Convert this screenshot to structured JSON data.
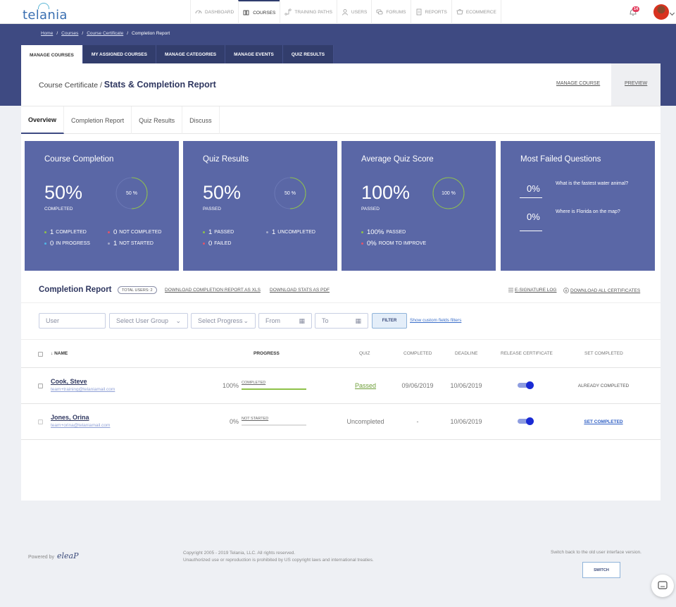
{
  "brand": {
    "logo_text": "telania"
  },
  "nav": {
    "items": [
      {
        "label": "DASHBOARD",
        "icon": "speedometer-icon"
      },
      {
        "label": "COURSES",
        "icon": "courses-icon",
        "active": true
      },
      {
        "label": "TRAINING PATHS",
        "icon": "path-icon"
      },
      {
        "label": "USERS",
        "icon": "user-icon"
      },
      {
        "label": "FORUMS",
        "icon": "chat-icon"
      },
      {
        "label": "REPORTS",
        "icon": "report-icon"
      },
      {
        "label": "ECOMMERCE",
        "icon": "cart-icon"
      }
    ],
    "notification_count": "14"
  },
  "breadcrumb": [
    "Home",
    "Courses",
    "Course Certificate",
    "Completion Report"
  ],
  "top_tabs": [
    "MANAGE COURSES",
    "MY ASSIGNED COURSES",
    "MANAGE CATEGORIES",
    "MANAGE EVENTS",
    "QUIZ RESULTS"
  ],
  "header": {
    "prefix": "Course Certificate /",
    "title": "Stats & Completion Report",
    "manage_course": "MANAGE COURSE",
    "preview": "PREVIEW"
  },
  "sub_tabs": [
    "Overview",
    "Completion Report",
    "Quiz Results",
    "Discuss"
  ],
  "cards": {
    "completion": {
      "title": "Course Completion",
      "big": "50%",
      "sub": "COMPLETED",
      "ring_text": "50 %",
      "ring_fraction": 0.5,
      "legend": [
        {
          "num": "1",
          "label": "COMPLETED",
          "color": "#8fc24a"
        },
        {
          "num": "0",
          "label": "NOT COMPLETED",
          "color": "#e2546b"
        },
        {
          "num": "0",
          "label": "IN PROGRESS",
          "color": "#4fb4e6"
        },
        {
          "num": "1",
          "label": "NOT STARTED",
          "color": "#a3a9c9"
        }
      ]
    },
    "quiz": {
      "title": "Quiz Results",
      "big": "50%",
      "sub": "PASSED",
      "ring_text": "50 %",
      "ring_fraction": 0.5,
      "legend": [
        {
          "num": "1",
          "label": "PASSED",
          "color": "#8fc24a"
        },
        {
          "num": "1",
          "label": "UNCOMPLETED",
          "color": "#a3a9c9"
        },
        {
          "num": "0",
          "label": "FAILED",
          "color": "#e2546b"
        }
      ]
    },
    "average": {
      "title": "Average Quiz Score",
      "big": "100%",
      "sub": "PASSED",
      "ring_text": "100 %",
      "ring_fraction": 1.0,
      "legend": [
        {
          "num": "100%",
          "label": "PASSED",
          "color": "#8fc24a"
        },
        {
          "num": "0%",
          "label": "ROOM TO IMPROVE",
          "color": "#e2546b"
        }
      ]
    },
    "failed": {
      "title": "Most Failed Questions",
      "questions": [
        {
          "pct": "0%",
          "text": "What is the fastest water animal?"
        },
        {
          "pct": "0%",
          "text": "Where is Florida on the map?"
        }
      ]
    }
  },
  "report": {
    "title": "Completion Report",
    "total_users": "TOTAL USERS: 2",
    "download_xls": "DOWNLOAD COMPLETION REPORT AS XLS",
    "download_pdf": "DOWNLOAD STATS AS PDF",
    "esignature": "E-SIGNATURE LOG",
    "download_certs": "DOWNLOAD ALL CERTIFICATES"
  },
  "filters": {
    "user": "User",
    "group": "Select User Group",
    "progress": "Select Progress",
    "from": "From",
    "to": "To",
    "filter_btn": "FILTER",
    "custom_link": "Show custom fields filters"
  },
  "table": {
    "headers": [
      "NAME",
      "PROGRESS",
      "QUIZ",
      "COMPLETED",
      "DEADLINE",
      "RELEASE CERTIFICATE",
      "SET COMPLETED"
    ],
    "rows": [
      {
        "name": "Cook, Steve",
        "email": "team+training@telaniamail.com",
        "progress_text": "100%",
        "progress": 1.0,
        "status": "COMPLETED",
        "quiz": "Passed",
        "completed": "09/06/2019",
        "deadline": "10/06/2019",
        "set_completed": "ALREADY COMPLETED"
      },
      {
        "name": "Jones, Orina",
        "email": "team+orina@telaniamail.com",
        "progress_text": "0%",
        "progress": 0.0,
        "status": "NOT STARTED",
        "quiz": "Uncompleted",
        "completed": "-",
        "deadline": "10/06/2019",
        "set_completed": "SET COMPLETED"
      }
    ]
  },
  "footer": {
    "powered_by": "Powered by",
    "eleap": "eleaP",
    "copyright_1": "Copyright 2005 - 2019 Telania, LLC. All rights reserved.",
    "copyright_2": "Unauthorized use or reproduction is prohibited by US copyright laws and international treaties.",
    "switch_text": "Switch back to the old user interface version.",
    "switch_btn": "SWITCH"
  },
  "colors": {
    "accent": "#3e4a82",
    "card": "#5a67a6",
    "success": "#8fc24a",
    "danger": "#e2546b",
    "info": "#4fb4e6",
    "toggle": "#1a2bd4"
  }
}
